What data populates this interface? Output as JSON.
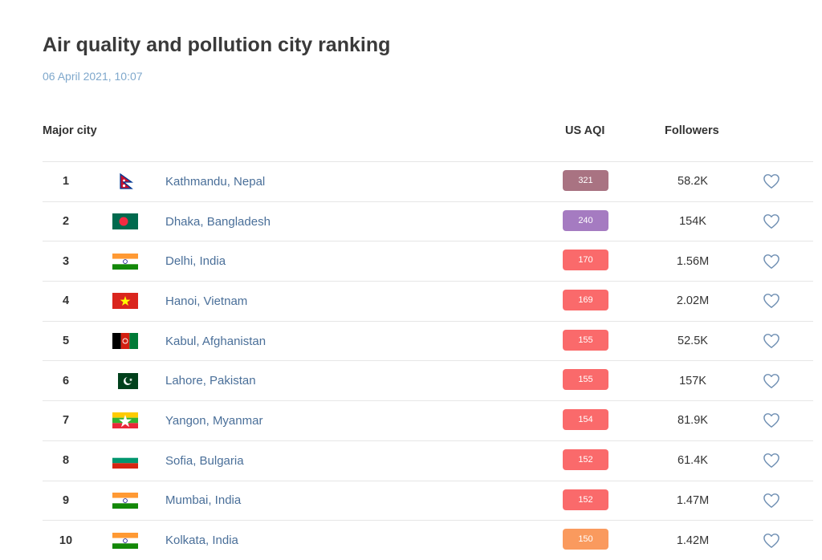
{
  "page": {
    "title": "Air quality and pollution city ranking",
    "timestamp": "06 April 2021, 10:07"
  },
  "columns": {
    "city": "Major city",
    "aqi": "US AQI",
    "followers": "Followers"
  },
  "icons": {
    "follow": "heart-outline-icon"
  },
  "colors": {
    "hazardous": "#a97382",
    "very_unhealthy": "#a57bc1",
    "unhealthy": "#fa6a6b",
    "unhealthy_sensitive": "#fa9a5e",
    "city_link": "#4a6f99",
    "heart": "#6f8fb3"
  },
  "rows": [
    {
      "rank": "1",
      "city": "Kathmandu, Nepal",
      "flag": "nepal-flag-icon",
      "aqi": "321",
      "aqi_color": "#a97382",
      "followers": "58.2K"
    },
    {
      "rank": "2",
      "city": "Dhaka, Bangladesh",
      "flag": "bangladesh-flag-icon",
      "aqi": "240",
      "aqi_color": "#a57bc1",
      "followers": "154K"
    },
    {
      "rank": "3",
      "city": "Delhi, India",
      "flag": "india-flag-icon",
      "aqi": "170",
      "aqi_color": "#fa6a6b",
      "followers": "1.56M"
    },
    {
      "rank": "4",
      "city": "Hanoi, Vietnam",
      "flag": "vietnam-flag-icon",
      "aqi": "169",
      "aqi_color": "#fa6a6b",
      "followers": "2.02M"
    },
    {
      "rank": "5",
      "city": "Kabul, Afghanistan",
      "flag": "afghanistan-flag-icon",
      "aqi": "155",
      "aqi_color": "#fa6a6b",
      "followers": "52.5K"
    },
    {
      "rank": "6",
      "city": "Lahore, Pakistan",
      "flag": "pakistan-flag-icon",
      "aqi": "155",
      "aqi_color": "#fa6a6b",
      "followers": "157K"
    },
    {
      "rank": "7",
      "city": "Yangon, Myanmar",
      "flag": "myanmar-flag-icon",
      "aqi": "154",
      "aqi_color": "#fa6a6b",
      "followers": "81.9K"
    },
    {
      "rank": "8",
      "city": "Sofia, Bulgaria",
      "flag": "bulgaria-flag-icon",
      "aqi": "152",
      "aqi_color": "#fa6a6b",
      "followers": "61.4K"
    },
    {
      "rank": "9",
      "city": "Mumbai, India",
      "flag": "india-flag-icon",
      "aqi": "152",
      "aqi_color": "#fa6a6b",
      "followers": "1.47M"
    },
    {
      "rank": "10",
      "city": "Kolkata, India",
      "flag": "india-flag-icon",
      "aqi": "150",
      "aqi_color": "#fa9a5e",
      "followers": "1.42M"
    }
  ]
}
